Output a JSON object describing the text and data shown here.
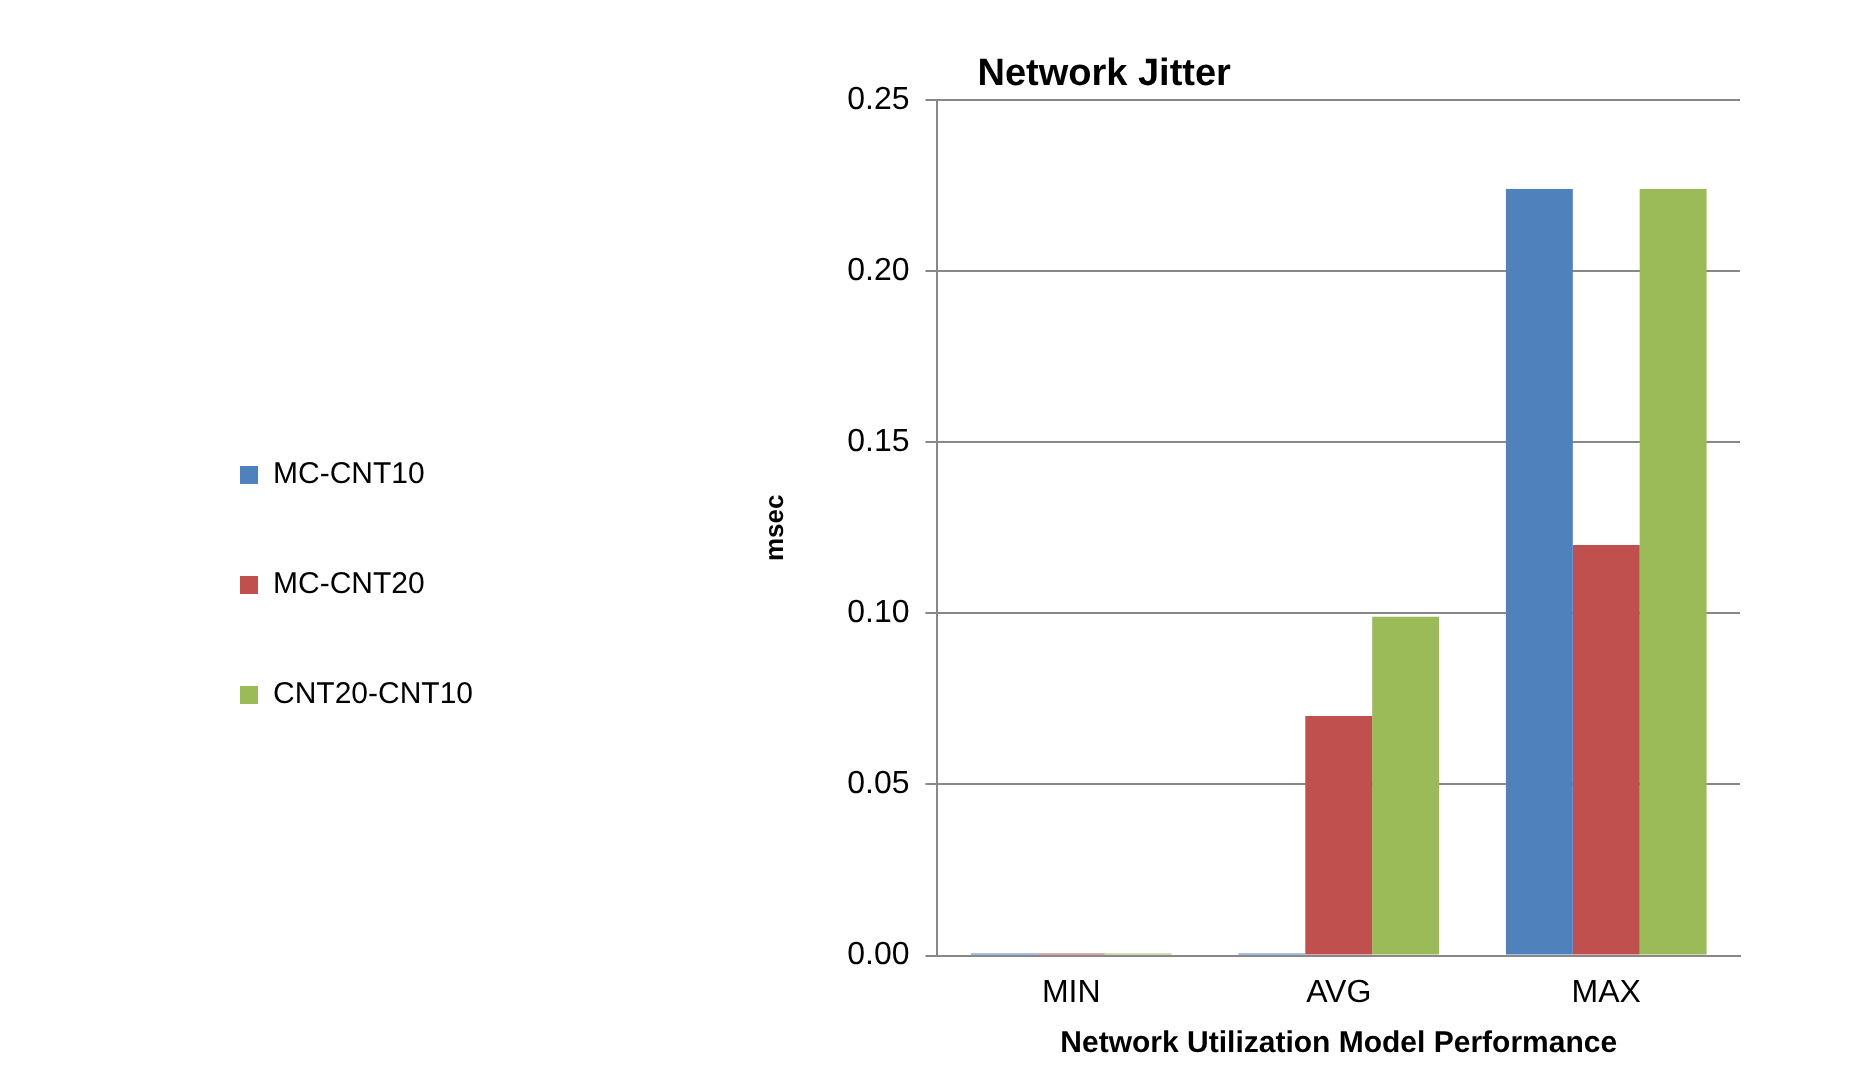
{
  "chart_data": {
    "type": "bar",
    "title": "Network Jitter",
    "xlabel": "Network Utilization Model Performance",
    "ylabel": "msec",
    "categories": [
      "MIN",
      "AVG",
      "MAX"
    ],
    "series": [
      {
        "name": "MC-CNT10",
        "color": "#4f81bd",
        "values": [
          0,
          0,
          0.224
        ]
      },
      {
        "name": "MC-CNT20",
        "color": "#c0504d",
        "values": [
          0,
          0.07,
          0.12
        ]
      },
      {
        "name": "CNT20-CNT10",
        "color": "#9bbb59",
        "values": [
          0,
          0.099,
          0.224
        ]
      }
    ],
    "ylim": [
      0,
      0.25
    ],
    "yticks": [
      {
        "value": 0,
        "label": "0.00"
      },
      {
        "value": 0.05,
        "label": "0.05"
      },
      {
        "value": 0.1,
        "label": "0.10"
      },
      {
        "value": 0.15,
        "label": "0.15"
      },
      {
        "value": 0.2,
        "label": "0.20"
      },
      {
        "value": 0.25,
        "label": "0.25"
      }
    ],
    "grid": "y",
    "legend": "left"
  }
}
